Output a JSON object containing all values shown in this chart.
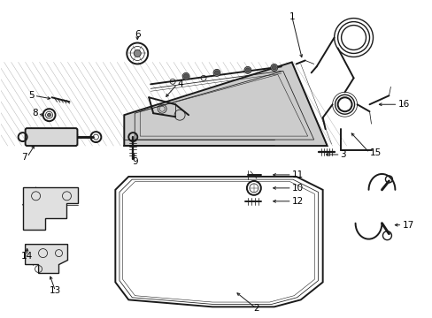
{
  "bg_color": "#ffffff",
  "line_color": "#1a1a1a",
  "label_color": "#000000",
  "lw": 1.0,
  "lw_thin": 0.55,
  "lw_thick": 1.4,
  "fontsize": 7.5
}
